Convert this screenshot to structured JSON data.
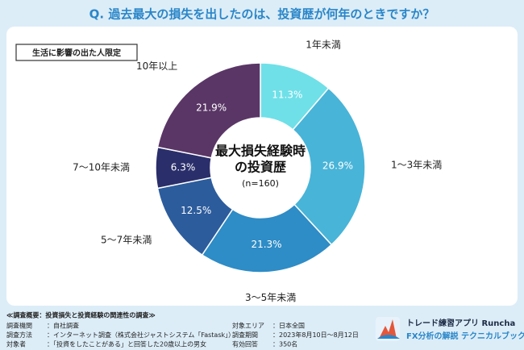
{
  "chart_data": {
    "type": "donut",
    "title": "Q. 過去最大の損失を出したのは、投資歴が何年のときですか？",
    "badge": "生活に影響の出た人限定",
    "center_label": [
      "最大損失経験時",
      "の投資歴",
      "(n=160)"
    ],
    "categories": [
      "1年未満",
      "1～3年未満",
      "3～5年未満",
      "5～7年未満",
      "7～10年未満",
      "10年以上"
    ],
    "values": [
      11.3,
      26.9,
      21.3,
      12.5,
      6.3,
      21.9
    ],
    "value_labels": [
      "11.3%",
      "26.9%",
      "21.3%",
      "12.5%",
      "6.3%",
      "21.9%"
    ],
    "colors": [
      "#6fe0e8",
      "#48b4d8",
      "#2e8cc6",
      "#2c5c9c",
      "#2a2e6a",
      "#5a3666"
    ]
  },
  "footer": {
    "heading": "≪調査概要：投資損失と投資経験の関連性の調査≫",
    "left": [
      [
        "調査機関",
        "：自社調査"
      ],
      [
        "調査方法",
        "：インターネット調査（株式会社ジャストシステム「Fastask」）"
      ],
      [
        "対象者",
        "：「投資をしたことがある」と回答した20歳以上の男女"
      ]
    ],
    "right": [
      [
        "対象エリア",
        "：日本全国"
      ],
      [
        "調査期間",
        "：2023年8月10日～8月12日"
      ],
      [
        "有効回答",
        "：350名"
      ]
    ],
    "brand": "トレード練習アプリ Runcha",
    "brand_sub": "FX分析の解説 テクニカルブック"
  }
}
